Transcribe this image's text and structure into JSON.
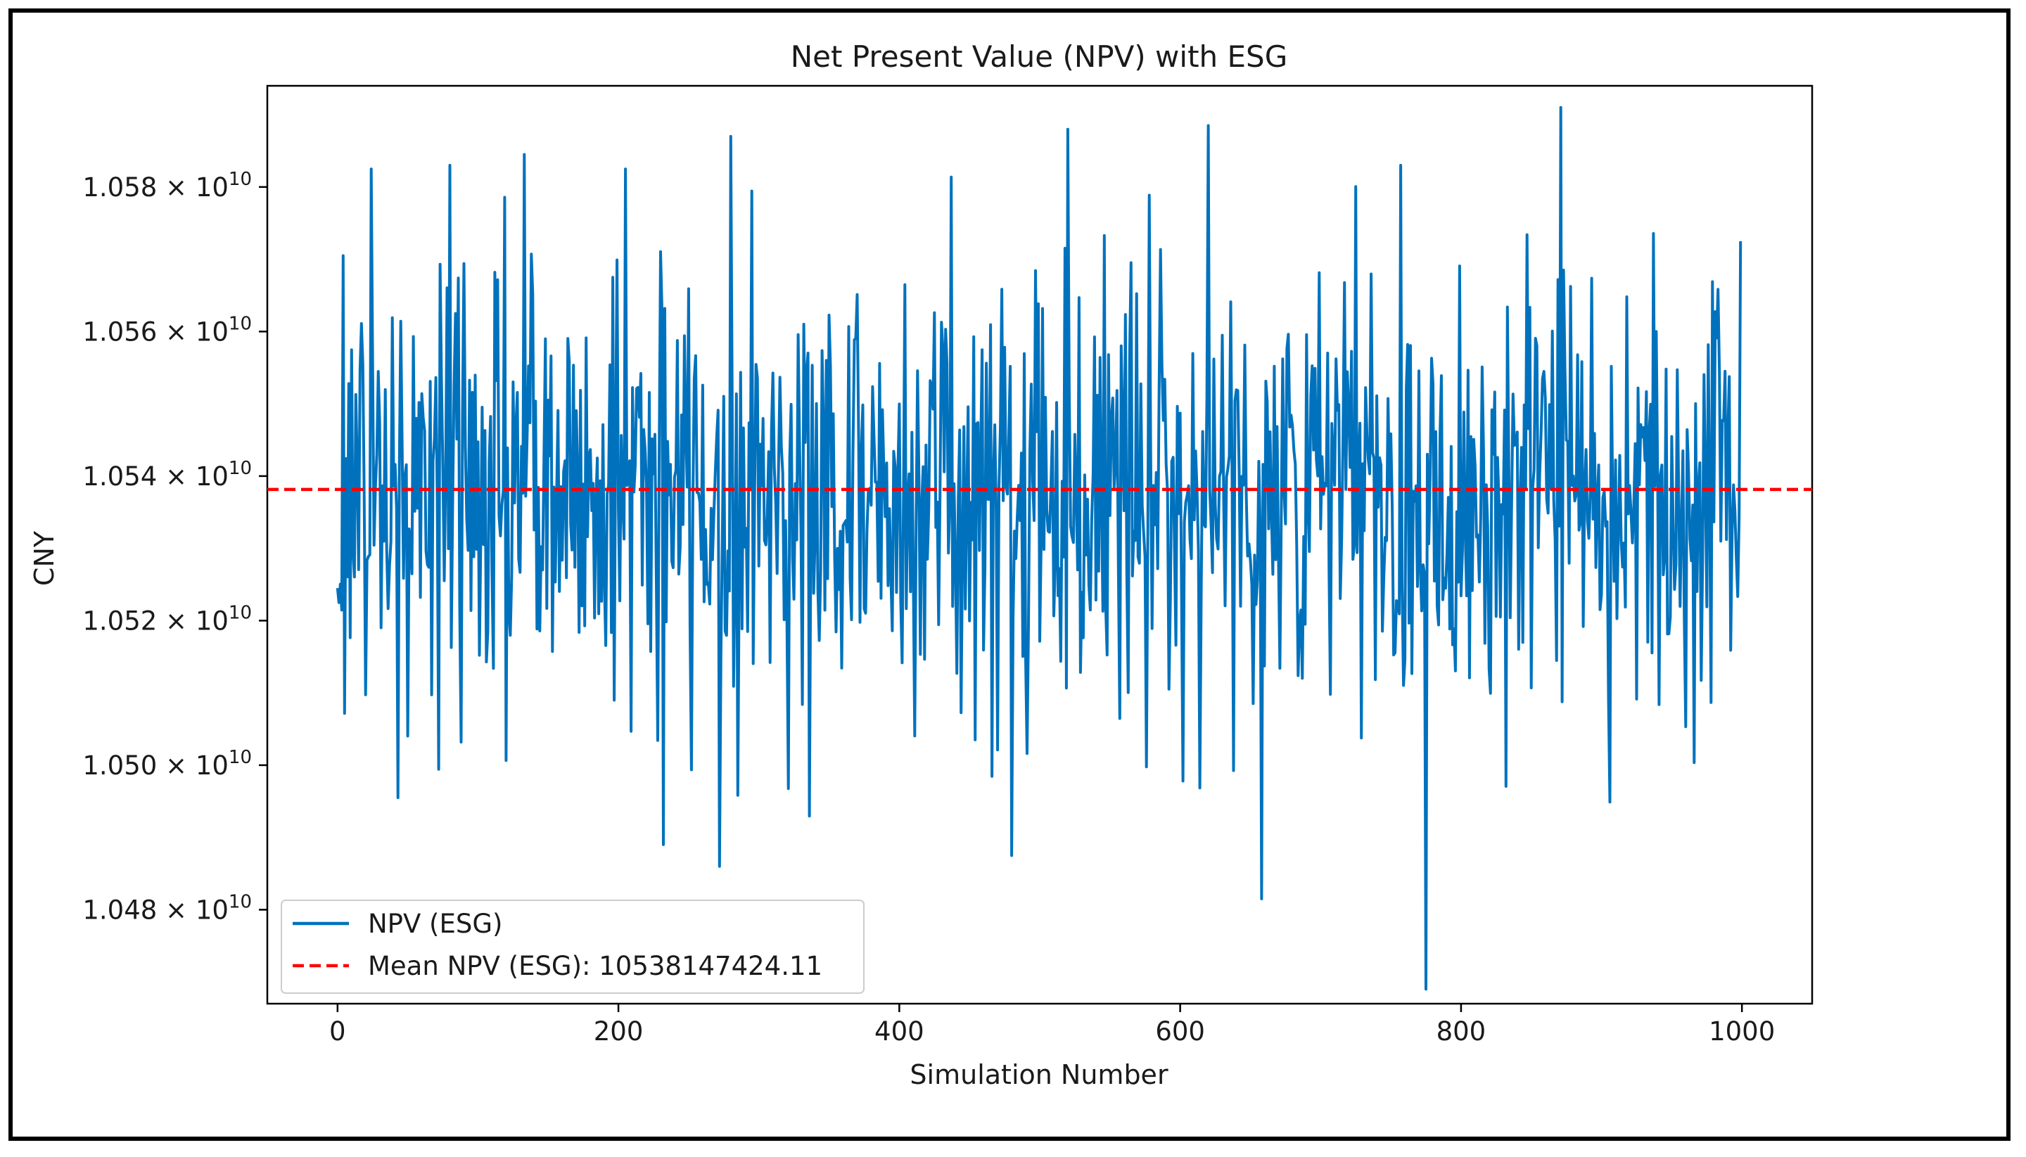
{
  "chart_data": {
    "type": "line",
    "title": "Net Present Value (NPV) with ESG",
    "xlabel": "Simulation Number",
    "ylabel": "CNY",
    "xlim": [
      -50,
      1050
    ],
    "ylim": [
      10467000000,
      10594000000
    ],
    "x_ticks": [
      {
        "value": 0,
        "label": "0"
      },
      {
        "value": 200,
        "label": "200"
      },
      {
        "value": 400,
        "label": "400"
      },
      {
        "value": 600,
        "label": "600"
      },
      {
        "value": 800,
        "label": "800"
      },
      {
        "value": 1000,
        "label": "1000"
      }
    ],
    "y_ticks": [
      {
        "value": 10480000000,
        "mantissa": "1.048",
        "times": "×",
        "base": "10",
        "exponent": "10"
      },
      {
        "value": 10500000000,
        "mantissa": "1.050",
        "times": "×",
        "base": "10",
        "exponent": "10"
      },
      {
        "value": 10520000000,
        "mantissa": "1.052",
        "times": "×",
        "base": "10",
        "exponent": "10"
      },
      {
        "value": 10540000000,
        "mantissa": "1.054",
        "times": "×",
        "base": "10",
        "exponent": "10"
      },
      {
        "value": 10560000000,
        "mantissa": "1.056",
        "times": "×",
        "base": "10",
        "exponent": "10"
      },
      {
        "value": 10580000000,
        "mantissa": "1.058",
        "times": "×",
        "base": "10",
        "exponent": "10"
      }
    ],
    "series": [
      {
        "name": "NPV (ESG)",
        "style": "solid",
        "color": "#0072bd",
        "n_points": 1000,
        "x_start": 0,
        "x_end": 999,
        "mean": 10538147424.11,
        "std": 16000000,
        "min": 10469000000,
        "max": 10591000000,
        "notable_points": [
          {
            "x": 0,
            "y": 10524500000
          },
          {
            "x": 4,
            "y": 10570500000
          },
          {
            "x": 24,
            "y": 10582500000
          },
          {
            "x": 43,
            "y": 10495500000
          },
          {
            "x": 80,
            "y": 10583000000
          },
          {
            "x": 133,
            "y": 10584500000
          },
          {
            "x": 205,
            "y": 10582500000
          },
          {
            "x": 232,
            "y": 10489000000
          },
          {
            "x": 272,
            "y": 10486000000
          },
          {
            "x": 480,
            "y": 10487500000
          },
          {
            "x": 520,
            "y": 10588000000
          },
          {
            "x": 620,
            "y": 10588500000
          },
          {
            "x": 658,
            "y": 10481500000
          },
          {
            "x": 775,
            "y": 10469000000
          },
          {
            "x": 871,
            "y": 10591000000
          },
          {
            "x": 999,
            "y": 10572500000
          }
        ]
      },
      {
        "name": "Mean NPV (ESG): 10538147424.11",
        "style": "dashed",
        "color": "#ff0000",
        "y": 10538147424.11
      }
    ],
    "legend": {
      "placement": "lower-left",
      "entries": [
        "NPV (ESG)",
        "Mean NPV (ESG): 10538147424.11"
      ]
    },
    "grid": false
  }
}
